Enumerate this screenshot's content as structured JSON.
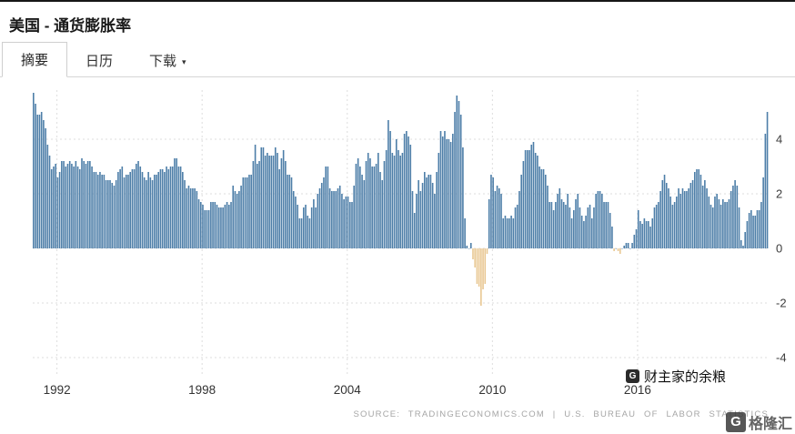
{
  "header": {
    "title": "美国 - 通货膨胀率"
  },
  "tabs": [
    {
      "label": "摘要",
      "active": true
    },
    {
      "label": "日历",
      "active": false
    },
    {
      "label": "下载",
      "active": false,
      "caret": "▾"
    }
  ],
  "chart_data": {
    "type": "bar",
    "title": "美国 - 通货膨胀率",
    "frequency": "monthly",
    "x_start": "1991-01",
    "x_end": "2021-05",
    "values": [
      5.7,
      5.3,
      4.9,
      4.9,
      5.0,
      4.7,
      4.4,
      3.8,
      3.4,
      2.9,
      3.0,
      3.1,
      2.6,
      2.8,
      3.2,
      3.2,
      3.0,
      3.1,
      3.2,
      3.1,
      3.0,
      3.2,
      3.0,
      2.9,
      3.3,
      3.2,
      3.1,
      3.2,
      3.2,
      3.0,
      2.8,
      2.8,
      2.7,
      2.8,
      2.7,
      2.7,
      2.5,
      2.5,
      2.5,
      2.4,
      2.3,
      2.5,
      2.8,
      2.9,
      3.0,
      2.6,
      2.7,
      2.7,
      2.8,
      2.9,
      2.9,
      3.1,
      3.2,
      3.0,
      2.8,
      2.6,
      2.5,
      2.8,
      2.6,
      2.5,
      2.7,
      2.7,
      2.8,
      2.9,
      2.9,
      2.8,
      3.0,
      2.9,
      3.0,
      3.0,
      3.3,
      3.3,
      3.0,
      3.0,
      2.8,
      2.5,
      2.2,
      2.3,
      2.2,
      2.2,
      2.2,
      2.1,
      1.8,
      1.7,
      1.6,
      1.4,
      1.4,
      1.4,
      1.7,
      1.7,
      1.7,
      1.6,
      1.5,
      1.5,
      1.5,
      1.6,
      1.7,
      1.6,
      1.7,
      2.3,
      2.1,
      2.0,
      2.1,
      2.3,
      2.6,
      2.6,
      2.6,
      2.7,
      2.7,
      3.2,
      3.8,
      3.1,
      3.2,
      3.7,
      3.7,
      3.4,
      3.5,
      3.4,
      3.4,
      3.4,
      3.7,
      3.5,
      2.9,
      3.3,
      3.6,
      3.2,
      2.7,
      2.7,
      2.6,
      2.1,
      1.9,
      1.6,
      1.1,
      1.1,
      1.5,
      1.6,
      1.2,
      1.1,
      1.5,
      1.8,
      1.5,
      2.0,
      2.2,
      2.4,
      2.6,
      3.0,
      3.0,
      2.2,
      2.1,
      2.1,
      2.1,
      2.2,
      2.3,
      2.0,
      1.8,
      1.9,
      1.9,
      1.7,
      1.7,
      2.3,
      3.1,
      3.3,
      3.0,
      2.7,
      2.5,
      3.2,
      3.5,
      3.3,
      3.0,
      3.0,
      3.1,
      3.5,
      2.8,
      2.5,
      3.2,
      3.6,
      4.7,
      4.3,
      3.5,
      3.4,
      4.0,
      3.6,
      3.4,
      3.5,
      4.2,
      4.3,
      4.1,
      3.8,
      2.1,
      1.3,
      2.0,
      2.5,
      2.1,
      2.4,
      2.8,
      2.6,
      2.7,
      2.7,
      2.4,
      2.0,
      2.8,
      3.5,
      4.3,
      4.1,
      4.3,
      4.0,
      4.0,
      3.9,
      4.2,
      5.0,
      5.6,
      5.4,
      4.9,
      3.7,
      1.1,
      0.1,
      0.0,
      0.2,
      -0.4,
      -0.7,
      -1.3,
      -1.4,
      -2.1,
      -1.5,
      -1.3,
      -0.2,
      1.8,
      2.7,
      2.6,
      2.1,
      2.3,
      2.2,
      2.0,
      1.1,
      1.2,
      1.1,
      1.1,
      1.2,
      1.1,
      1.5,
      1.6,
      2.1,
      2.7,
      3.2,
      3.6,
      3.6,
      3.6,
      3.8,
      3.9,
      3.5,
      3.4,
      3.0,
      2.9,
      2.9,
      2.7,
      2.3,
      1.7,
      1.7,
      1.4,
      1.7,
      2.0,
      2.2,
      1.8,
      1.7,
      1.6,
      2.0,
      1.5,
      1.1,
      1.4,
      1.8,
      2.0,
      1.5,
      1.2,
      1.0,
      1.2,
      1.5,
      1.6,
      1.1,
      1.5,
      2.0,
      2.1,
      2.1,
      2.0,
      1.7,
      1.7,
      1.7,
      1.3,
      0.8,
      -0.1,
      0.0,
      -0.1,
      -0.2,
      0.0,
      0.1,
      0.2,
      0.2,
      0.0,
      0.2,
      0.5,
      0.7,
      1.4,
      1.0,
      0.9,
      1.1,
      1.0,
      1.0,
      0.8,
      1.1,
      1.5,
      1.6,
      1.7,
      2.1,
      2.5,
      2.7,
      2.4,
      2.2,
      1.9,
      1.6,
      1.7,
      1.9,
      2.2,
      2.0,
      2.2,
      2.1,
      2.1,
      2.2,
      2.4,
      2.5,
      2.8,
      2.9,
      2.9,
      2.7,
      2.3,
      2.5,
      2.2,
      1.9,
      1.6,
      1.5,
      1.9,
      2.0,
      1.8,
      1.6,
      1.8,
      1.7,
      1.7,
      1.8,
      2.1,
      2.3,
      2.5,
      2.3,
      1.5,
      0.3,
      0.1,
      0.6,
      1.0,
      1.3,
      1.4,
      1.2,
      1.2,
      1.4,
      1.4,
      1.7,
      2.6,
      4.2,
      5.0
    ],
    "x_ticks": [
      {
        "label": "1992",
        "index": 12
      },
      {
        "label": "1998",
        "index": 84
      },
      {
        "label": "2004",
        "index": 156
      },
      {
        "label": "2010",
        "index": 228
      },
      {
        "label": "2016",
        "index": 300
      }
    ],
    "y_ticks": [
      4,
      2,
      0,
      -2,
      -4
    ],
    "ylim": [
      -4.6,
      5.8
    ],
    "grid": true,
    "grid_color": "#dedede",
    "bar_color_positive": "#4d7ea8",
    "bar_color_negative": "#e9c893",
    "tick_label_color": "#3c3c3c",
    "legend": "none"
  },
  "footer": {
    "source": "SOURCE: TRADINGECONOMICS.COM | U.S. BUREAU OF LABOR STATISTICS"
  },
  "watermarks": {
    "center_text": "财主家的余粮",
    "small_logo_letter": "G",
    "logo_letter": "G",
    "logo_text": "格隆汇"
  }
}
